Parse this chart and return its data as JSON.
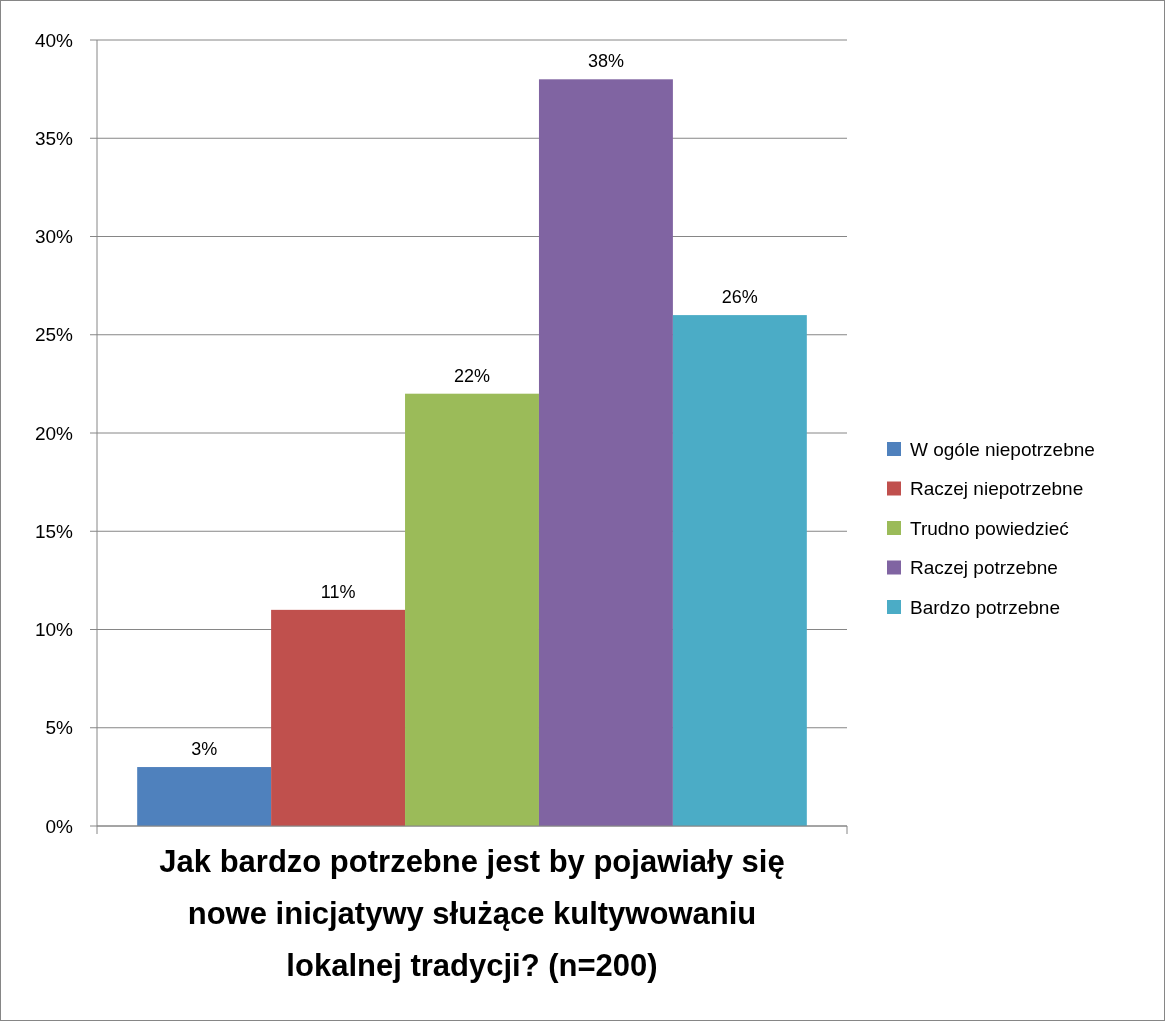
{
  "chart_data": {
    "type": "bar",
    "title": "Jak bardzo potrzebne jest by pojawiały się nowe inicjatywy służące kultywowaniu lokalnej tradycji? (n=200)",
    "categories": [
      null
    ],
    "series": [
      {
        "name": "W ogóle niepotrzebne",
        "color": "#4f81bd",
        "values": [
          3
        ],
        "value_labels": [
          "3%"
        ]
      },
      {
        "name": "Raczej niepotrzebne",
        "color": "#c0504d",
        "values": [
          11
        ],
        "value_labels": [
          "11%"
        ]
      },
      {
        "name": "Trudno powiedzieć",
        "color": "#9bbb59",
        "values": [
          22
        ],
        "value_labels": [
          "22%"
        ]
      },
      {
        "name": "Raczej potrzebne",
        "color": "#8064a2",
        "values": [
          38
        ],
        "value_labels": [
          "38%"
        ]
      },
      {
        "name": "Bardzo potrzebne",
        "color": "#4bacc6",
        "values": [
          26
        ],
        "value_labels": [
          "26%"
        ]
      }
    ],
    "ylim": [
      0,
      40
    ],
    "yticks": [
      {
        "value": 0,
        "label": "0%"
      },
      {
        "value": 5,
        "label": "5%"
      },
      {
        "value": 10,
        "label": "10%"
      },
      {
        "value": 15,
        "label": "15%"
      },
      {
        "value": 20,
        "label": "20%"
      },
      {
        "value": 25,
        "label": "25%"
      },
      {
        "value": 30,
        "label": "30%"
      },
      {
        "value": 35,
        "label": "35%"
      },
      {
        "value": 40,
        "label": "40%"
      }
    ],
    "grid": "y",
    "legend": "right"
  }
}
